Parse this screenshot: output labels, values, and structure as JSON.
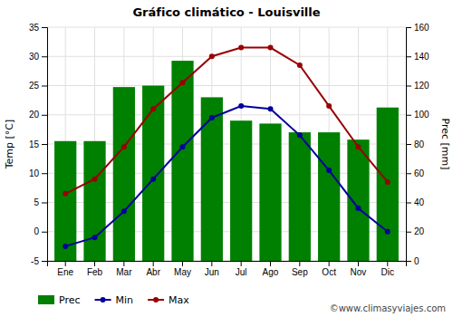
{
  "chart_data": {
    "type": "bar",
    "title": "Gráfico climático - Louisville",
    "categories": [
      "Ene",
      "Feb",
      "Mar",
      "Abr",
      "May",
      "Jun",
      "Jul",
      "Ago",
      "Sep",
      "Oct",
      "Nov",
      "Dic"
    ],
    "series": [
      {
        "name": "Prec",
        "type": "bar",
        "axis": "y2",
        "color": "#008000",
        "values": [
          82,
          82,
          119,
          120,
          137,
          112,
          96,
          94,
          88,
          88,
          83,
          105
        ]
      },
      {
        "name": "Min",
        "type": "line",
        "color": "#000099",
        "marker": "circle",
        "values": [
          -2.5,
          -1.0,
          3.5,
          9.0,
          14.5,
          19.5,
          21.5,
          21.0,
          16.5,
          10.5,
          4.0,
          0.0
        ]
      },
      {
        "name": "Max",
        "type": "line",
        "color": "#990000",
        "marker": "circle",
        "values": [
          6.5,
          9.0,
          14.5,
          21.0,
          25.5,
          30.0,
          31.5,
          31.5,
          28.5,
          21.5,
          14.5,
          8.5
        ]
      }
    ],
    "ylabel": "Temp [°C]",
    "y2label": "Prec [mm]",
    "ylim": [
      -5,
      35
    ],
    "yticks": [
      -5,
      0,
      5,
      10,
      15,
      20,
      25,
      30,
      35
    ],
    "y2lim": [
      0,
      160
    ],
    "y2ticks": [
      0,
      20,
      40,
      60,
      80,
      100,
      120,
      140,
      160
    ],
    "grid": true,
    "legend": "bottom",
    "annotation": "©www.climasyviajes.com"
  }
}
